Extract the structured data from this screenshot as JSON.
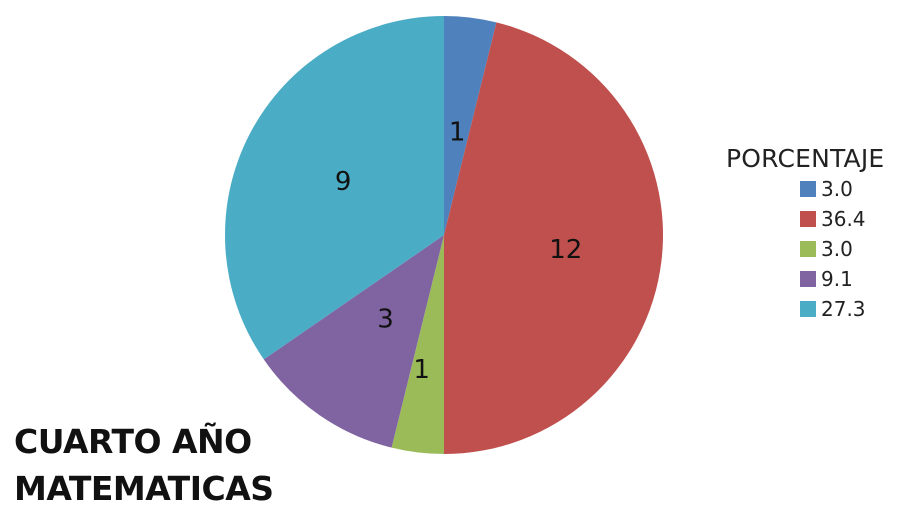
{
  "chart_data": {
    "type": "pie",
    "title": "",
    "legend_title": "PORCENTAJE",
    "legend_position": "right",
    "categories": [
      "3.0",
      "36.4",
      "3.0",
      "9.1",
      "27.3"
    ],
    "values": [
      1,
      12,
      1,
      3,
      9
    ],
    "data_labels": [
      "1",
      "12",
      "1",
      "3",
      "9"
    ],
    "colors": [
      "#4F81BD",
      "#C0504D",
      "#9BBB59",
      "#8064A2",
      "#4BACC6"
    ],
    "start_angle_deg": 0,
    "direction": "clockwise"
  },
  "caption": {
    "line1": "CUARTO AÑO",
    "line2": "MATEMATICAS"
  }
}
